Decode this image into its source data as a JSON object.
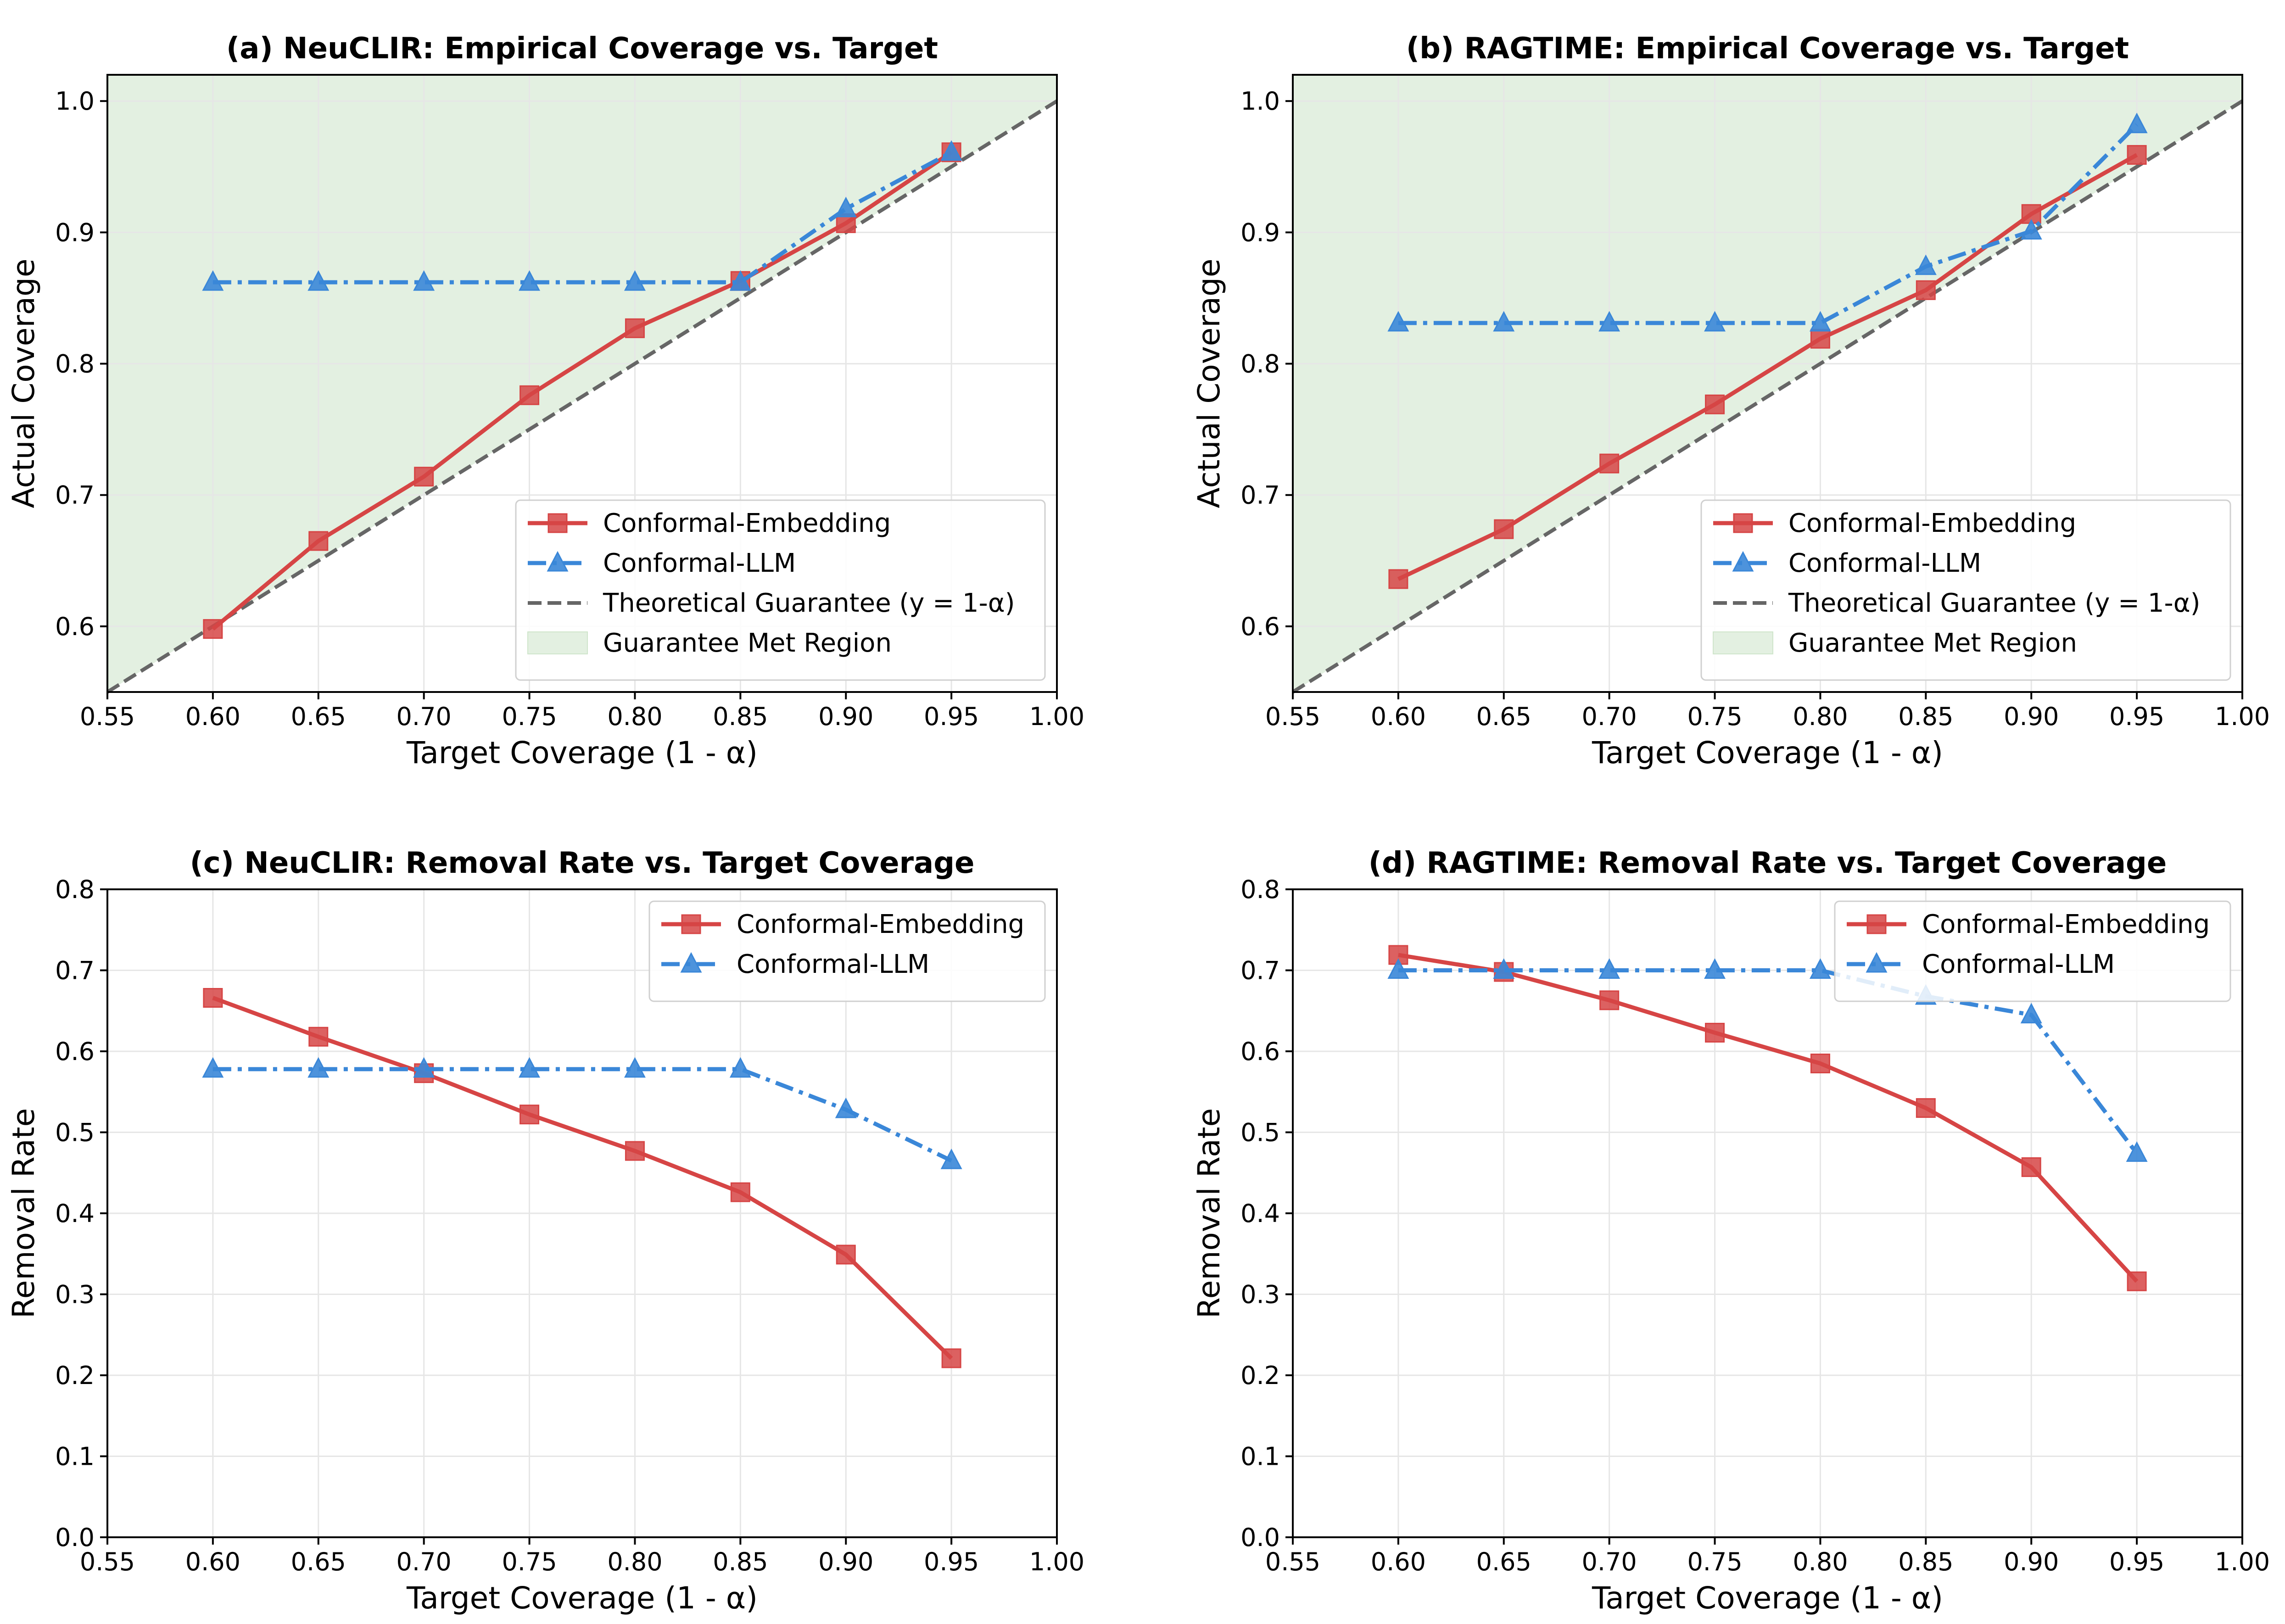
{
  "colors": {
    "embedding": "#d64545",
    "llm": "#3a87d8",
    "guarantee": "#666666",
    "region": "#e3f0e1",
    "grid": "#e6e6e6"
  },
  "chart_data": [
    {
      "type": "line",
      "title": "(a) NeuCLIR: Empirical Coverage vs. Target",
      "xlabel": "Target Coverage (1 - α)",
      "ylabel": "Actual Coverage",
      "xlim": [
        0.55,
        1.0
      ],
      "ylim": [
        0.55,
        1.02
      ],
      "xticks": [
        "0.55",
        "0.60",
        "0.65",
        "0.70",
        "0.75",
        "0.80",
        "0.85",
        "0.90",
        "0.95",
        "1.00"
      ],
      "yticks": [
        "0.6",
        "0.7",
        "0.8",
        "0.9",
        "1.0"
      ],
      "grid": true,
      "legend_position": "lower-right",
      "x": [
        0.6,
        0.65,
        0.7,
        0.75,
        0.8,
        0.85,
        0.9,
        0.95
      ],
      "series": [
        {
          "name": "Conformal-Embedding",
          "marker": "square",
          "style": "solid",
          "values": [
            0.598,
            0.665,
            0.714,
            0.776,
            0.827,
            0.863,
            0.907,
            0.961
          ]
        },
        {
          "name": "Conformal-LLM",
          "marker": "triangle",
          "style": "dashdot",
          "values": [
            0.862,
            0.862,
            0.862,
            0.862,
            0.862,
            0.862,
            0.918,
            0.961
          ]
        }
      ],
      "reference_line": {
        "name": "Theoretical Guarantee (y = 1-α)"
      },
      "region": {
        "name": "Guarantee Met Region"
      }
    },
    {
      "type": "line",
      "title": "(b) RAGTIME: Empirical Coverage vs. Target",
      "xlabel": "Target Coverage (1 - α)",
      "ylabel": "Actual Coverage",
      "xlim": [
        0.55,
        1.0
      ],
      "ylim": [
        0.55,
        1.02
      ],
      "xticks": [
        "0.55",
        "0.60",
        "0.65",
        "0.70",
        "0.75",
        "0.80",
        "0.85",
        "0.90",
        "0.95",
        "1.00"
      ],
      "yticks": [
        "0.6",
        "0.7",
        "0.8",
        "0.9",
        "1.0"
      ],
      "grid": true,
      "legend_position": "lower-right",
      "x": [
        0.6,
        0.65,
        0.7,
        0.75,
        0.8,
        0.85,
        0.9,
        0.95
      ],
      "series": [
        {
          "name": "Conformal-Embedding",
          "marker": "square",
          "style": "solid",
          "values": [
            0.636,
            0.674,
            0.724,
            0.769,
            0.819,
            0.856,
            0.914,
            0.959
          ]
        },
        {
          "name": "Conformal-LLM",
          "marker": "triangle",
          "style": "dashdot",
          "values": [
            0.831,
            0.831,
            0.831,
            0.831,
            0.831,
            0.874,
            0.901,
            0.982
          ]
        }
      ],
      "reference_line": {
        "name": "Theoretical Guarantee (y = 1-α)"
      },
      "region": {
        "name": "Guarantee Met Region"
      }
    },
    {
      "type": "line",
      "title": "(c) NeuCLIR: Removal Rate vs. Target Coverage",
      "xlabel": "Target Coverage (1 - α)",
      "ylabel": "Removal Rate",
      "xlim": [
        0.55,
        1.0
      ],
      "ylim": [
        0.0,
        0.8
      ],
      "xticks": [
        "0.55",
        "0.60",
        "0.65",
        "0.70",
        "0.75",
        "0.80",
        "0.85",
        "0.90",
        "0.95",
        "1.00"
      ],
      "yticks": [
        "0.0",
        "0.1",
        "0.2",
        "0.3",
        "0.4",
        "0.5",
        "0.6",
        "0.7",
        "0.8"
      ],
      "grid": true,
      "legend_position": "upper-right",
      "x": [
        0.6,
        0.65,
        0.7,
        0.75,
        0.8,
        0.85,
        0.9,
        0.95
      ],
      "series": [
        {
          "name": "Conformal-Embedding",
          "marker": "square",
          "style": "solid",
          "values": [
            0.666,
            0.618,
            0.573,
            0.522,
            0.477,
            0.426,
            0.349,
            0.221
          ]
        },
        {
          "name": "Conformal-LLM",
          "marker": "triangle",
          "style": "dashdot",
          "values": [
            0.578,
            0.578,
            0.578,
            0.578,
            0.578,
            0.578,
            0.528,
            0.465
          ]
        }
      ]
    },
    {
      "type": "line",
      "title": "(d) RAGTIME: Removal Rate vs. Target Coverage",
      "xlabel": "Target Coverage (1 - α)",
      "ylabel": "Removal Rate",
      "xlim": [
        0.55,
        1.0
      ],
      "ylim": [
        0.0,
        0.8
      ],
      "xticks": [
        "0.55",
        "0.60",
        "0.65",
        "0.70",
        "0.75",
        "0.80",
        "0.85",
        "0.90",
        "0.95",
        "1.00"
      ],
      "yticks": [
        "0.0",
        "0.1",
        "0.2",
        "0.3",
        "0.4",
        "0.5",
        "0.6",
        "0.7",
        "0.8"
      ],
      "grid": true,
      "legend_position": "upper-right",
      "x": [
        0.6,
        0.65,
        0.7,
        0.75,
        0.8,
        0.85,
        0.9,
        0.95
      ],
      "series": [
        {
          "name": "Conformal-Embedding",
          "marker": "square",
          "style": "solid",
          "values": [
            0.719,
            0.698,
            0.663,
            0.623,
            0.585,
            0.53,
            0.457,
            0.316
          ]
        },
        {
          "name": "Conformal-LLM",
          "marker": "triangle",
          "style": "dashdot",
          "values": [
            0.7,
            0.7,
            0.7,
            0.7,
            0.7,
            0.668,
            0.645,
            0.474
          ]
        }
      ]
    }
  ]
}
